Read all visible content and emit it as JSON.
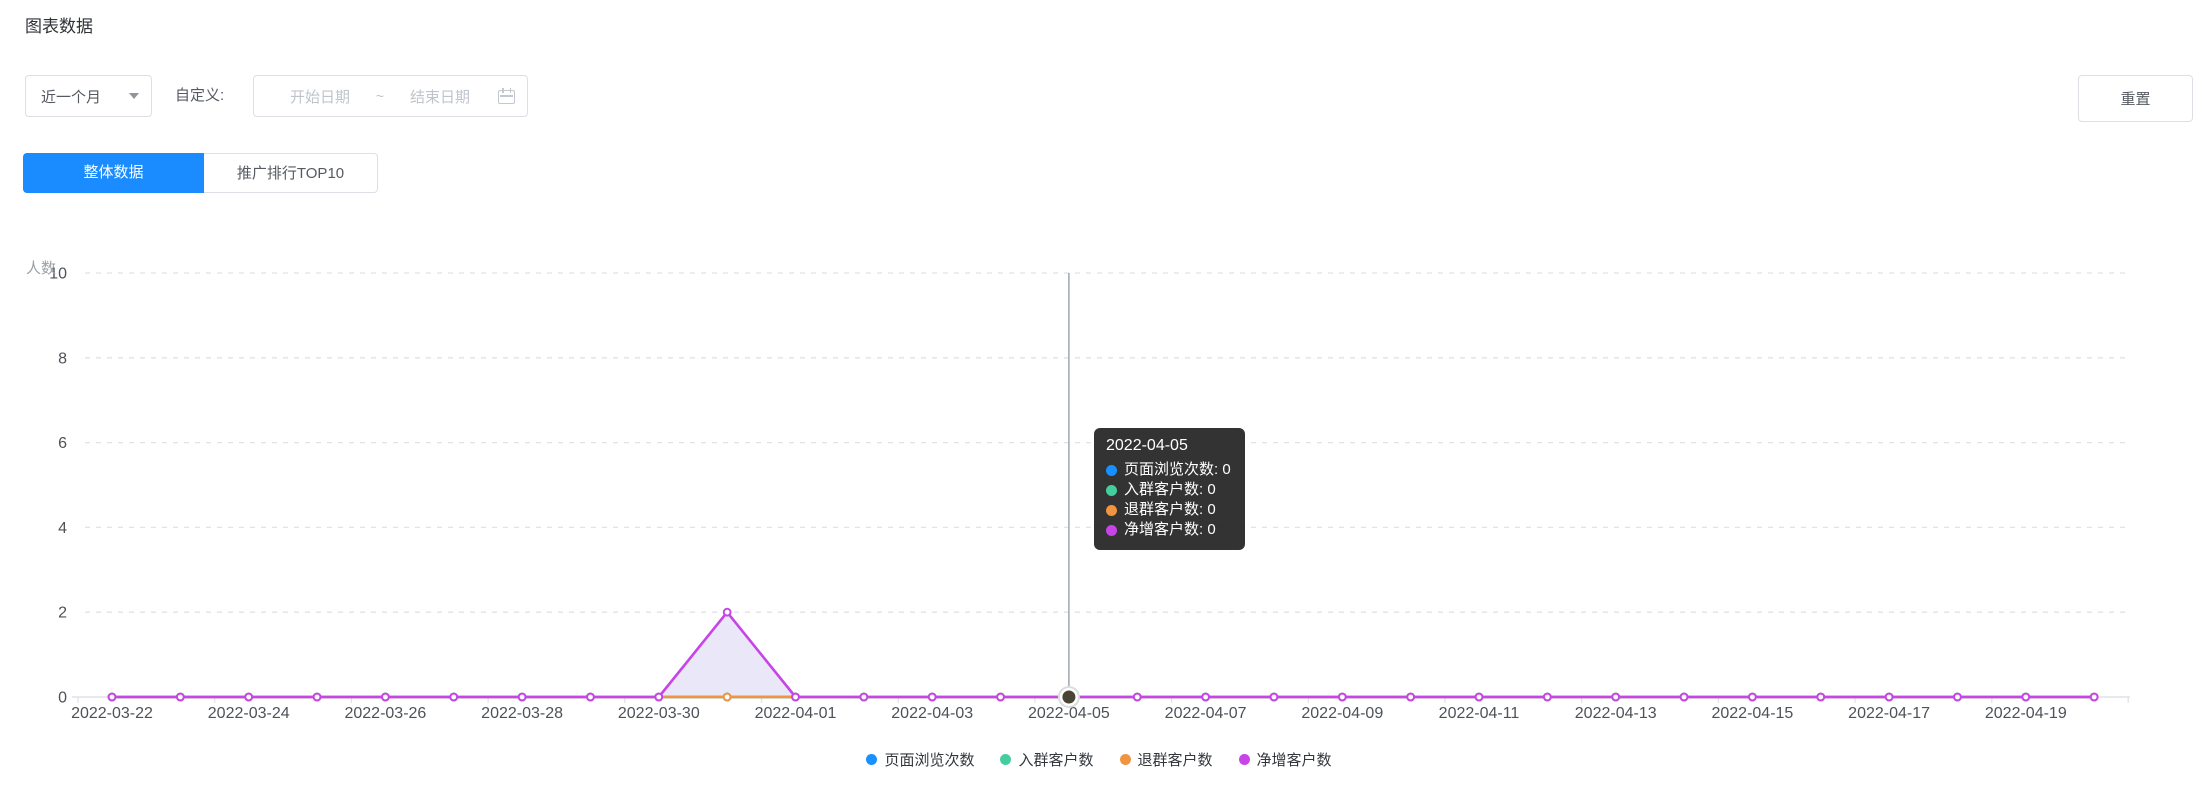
{
  "page": {
    "title": "图表数据"
  },
  "filters": {
    "range_select": {
      "value": "近一个月",
      "icon": "chevron-down-icon"
    },
    "custom_label": "自定义:",
    "date_range": {
      "start_placeholder": "开始日期",
      "separator": "~",
      "end_placeholder": "结束日期",
      "icon": "calendar-icon"
    },
    "reset_label": "重置"
  },
  "tabs": [
    {
      "label": "整体数据",
      "active": true
    },
    {
      "label": "推广排行TOP10",
      "active": false
    }
  ],
  "colors": {
    "accent_blue": "#1a8cff",
    "border": "#dcdfe6",
    "grid_line": "#e0e2e8",
    "axis_line": "#e0e2e8",
    "crosshair": "#9aa0a6",
    "hover_dot": "#4a4437",
    "tooltip_bg": "rgba(36,36,36,0.93)"
  },
  "chart_data": {
    "type": "line",
    "title": "",
    "xlabel": "",
    "ylabel": "人数",
    "ylim": [
      0,
      10
    ],
    "y_ticks": [
      0,
      2,
      4,
      6,
      8,
      10
    ],
    "grid": true,
    "legend_position": "bottom",
    "x_label_every": 2,
    "x": [
      "2022-03-22",
      "2022-03-23",
      "2022-03-24",
      "2022-03-25",
      "2022-03-26",
      "2022-03-27",
      "2022-03-28",
      "2022-03-29",
      "2022-03-30",
      "2022-03-31",
      "2022-04-01",
      "2022-04-02",
      "2022-04-03",
      "2022-04-04",
      "2022-04-05",
      "2022-04-06",
      "2022-04-07",
      "2022-04-08",
      "2022-04-09",
      "2022-04-10",
      "2022-04-11",
      "2022-04-12",
      "2022-04-13",
      "2022-04-14",
      "2022-04-15",
      "2022-04-16",
      "2022-04-17",
      "2022-04-18",
      "2022-04-19",
      "2022-04-20"
    ],
    "series": [
      {
        "name": "页面浏览次数",
        "color": "#1890ff",
        "area": false,
        "values": [
          0,
          0,
          0,
          0,
          0,
          0,
          0,
          0,
          0,
          0,
          0,
          0,
          0,
          0,
          0,
          0,
          0,
          0,
          0,
          0,
          0,
          0,
          0,
          0,
          0,
          0,
          0,
          0,
          0,
          0
        ]
      },
      {
        "name": "入群客户数",
        "color": "#45ce9d",
        "area": false,
        "values": [
          0,
          0,
          0,
          0,
          0,
          0,
          0,
          0,
          0,
          0,
          0,
          0,
          0,
          0,
          0,
          0,
          0,
          0,
          0,
          0,
          0,
          0,
          0,
          0,
          0,
          0,
          0,
          0,
          0,
          0
        ]
      },
      {
        "name": "退群客户数",
        "color": "#f0943f",
        "area": false,
        "values": [
          0,
          0,
          0,
          0,
          0,
          0,
          0,
          0,
          0,
          0,
          0,
          0,
          0,
          0,
          0,
          0,
          0,
          0,
          0,
          0,
          0,
          0,
          0,
          0,
          0,
          0,
          0,
          0,
          0,
          0
        ]
      },
      {
        "name": "净增客户数",
        "color": "#c645e6",
        "area": true,
        "area_fill": "rgba(124,104,216,0.16)",
        "values": [
          0,
          0,
          0,
          0,
          0,
          0,
          0,
          0,
          0,
          2,
          0,
          0,
          0,
          0,
          0,
          0,
          0,
          0,
          0,
          0,
          0,
          0,
          0,
          0,
          0,
          0,
          0,
          0,
          0,
          0
        ]
      }
    ]
  },
  "tooltip": {
    "date": "2022-04-05",
    "items": [
      {
        "label": "页面浏览次数",
        "value": "0",
        "color": "#1890ff"
      },
      {
        "label": "入群客户数",
        "value": "0",
        "color": "#45ce9d"
      },
      {
        "label": "退群客户数",
        "value": "0",
        "color": "#f0943f"
      },
      {
        "label": "净增客户数",
        "value": "0",
        "color": "#c645e6"
      }
    ]
  }
}
